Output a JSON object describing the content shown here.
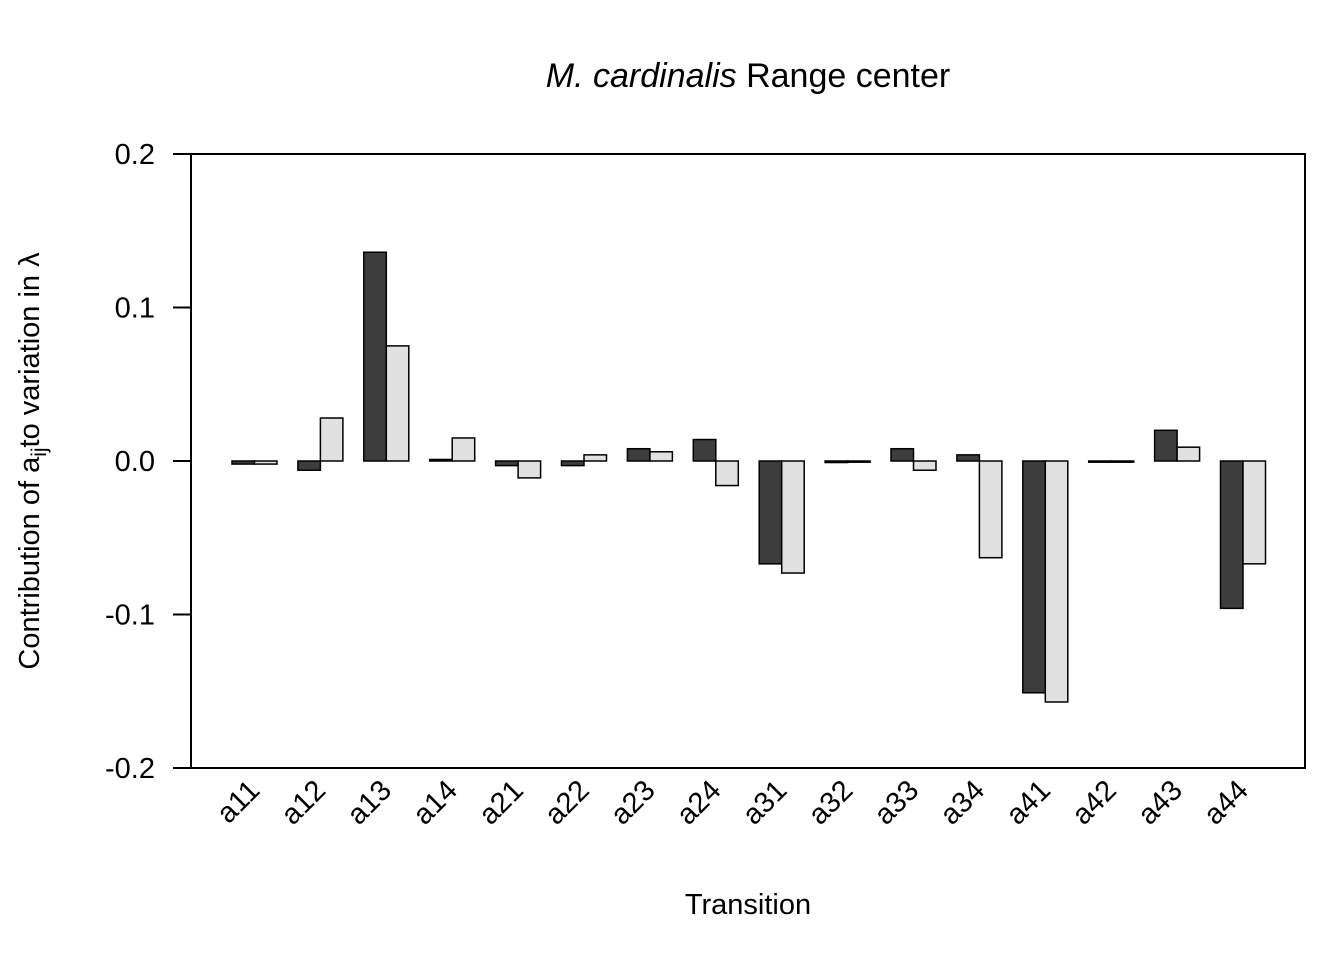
{
  "chart_data": {
    "type": "bar",
    "title": {
      "italic": "M. cardinalis",
      "plain": " Range center"
    },
    "xlabel": "Transition",
    "ylabel": {
      "prefix": "Contribution of a",
      "subscript": "ij",
      "suffix": "to variation in λ"
    },
    "ylim": [
      -0.2,
      0.2
    ],
    "yticks": [
      0.2,
      0.1,
      0.0,
      -0.1,
      -0.2
    ],
    "ytick_labels": [
      "0.2",
      "0.1",
      "0.0",
      "-0.1",
      "-0.2"
    ],
    "categories": [
      "a11",
      "a12",
      "a13",
      "a14",
      "a21",
      "a22",
      "a23",
      "a24",
      "a31",
      "a32",
      "a33",
      "a34",
      "a41",
      "a42",
      "a43",
      "a44"
    ],
    "series": [
      {
        "color": "#3d3d3d",
        "values": [
          -0.002,
          -0.006,
          0.136,
          0.001,
          -0.003,
          -0.003,
          0.008,
          0.014,
          -0.067,
          -0.001,
          0.008,
          0.004,
          -0.151,
          0.0,
          0.02,
          -0.096
        ]
      },
      {
        "color": "#e1e1e1",
        "values": [
          -0.002,
          0.028,
          0.075,
          0.015,
          -0.011,
          0.004,
          0.006,
          -0.016,
          -0.073,
          0.0,
          -0.006,
          -0.063,
          -0.157,
          0.0,
          0.009,
          -0.067
        ]
      }
    ],
    "legend": "none",
    "grid": false
  }
}
